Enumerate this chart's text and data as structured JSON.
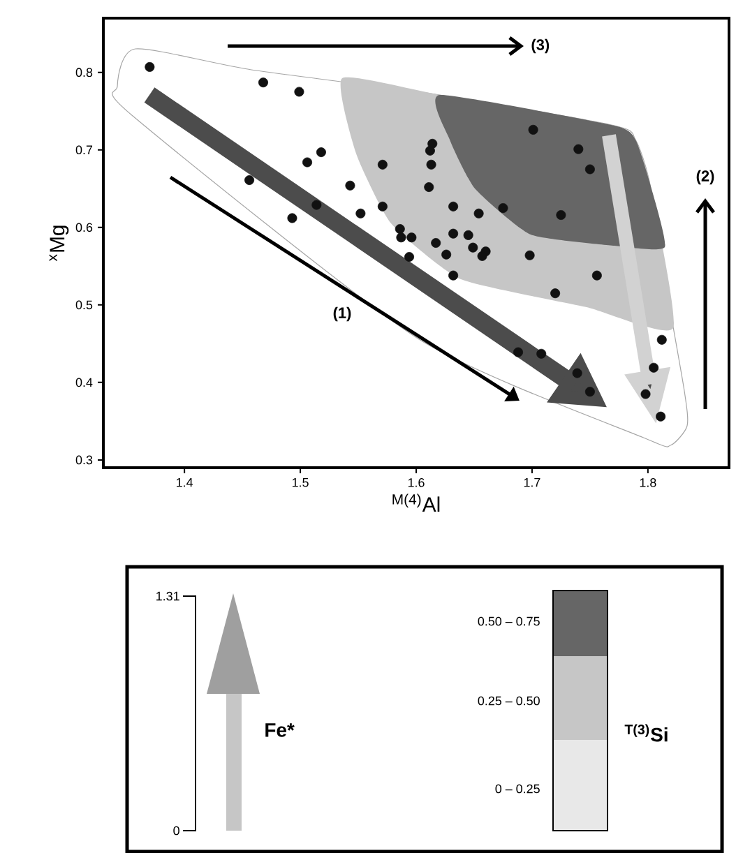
{
  "chart_data": {
    "type": "scatter",
    "xlabel": "$^{M(4)}$Al",
    "ylabel": "$^{x}$Mg",
    "x": [
      1.37,
      1.468,
      1.499,
      1.456,
      1.506,
      1.518,
      1.493,
      1.514,
      1.543,
      1.552,
      1.571,
      1.571,
      1.614,
      1.612,
      1.613,
      1.611,
      1.632,
      1.654,
      1.675,
      1.725,
      1.701,
      1.74,
      1.75,
      1.586,
      1.596,
      1.587,
      1.594,
      1.617,
      1.632,
      1.626,
      1.632,
      1.645,
      1.649,
      1.66,
      1.657,
      1.698,
      1.756,
      1.72,
      1.688,
      1.708,
      1.739,
      1.75,
      1.812,
      1.805,
      1.798,
      1.811
    ],
    "values": [
      0.807,
      0.787,
      0.775,
      0.661,
      0.684,
      0.697,
      0.612,
      0.629,
      0.654,
      0.618,
      0.681,
      0.627,
      0.708,
      0.699,
      0.681,
      0.652,
      0.627,
      0.618,
      0.625,
      0.616,
      0.726,
      0.701,
      0.675,
      0.598,
      0.587,
      0.587,
      0.562,
      0.58,
      0.592,
      0.565,
      0.538,
      0.59,
      0.574,
      0.569,
      0.563,
      0.564,
      0.538,
      0.515,
      0.439,
      0.437,
      0.412,
      0.388,
      0.455,
      0.419,
      0.385,
      0.356
    ],
    "color": "#111111",
    "marker": "circle",
    "xlim": [
      1.33,
      1.87
    ],
    "ylim": [
      0.29,
      0.87
    ],
    "xticks": [
      1.4,
      1.5,
      1.6,
      1.7,
      1.8
    ],
    "yticks": [
      0.3,
      0.4,
      0.5,
      0.6,
      0.7,
      0.8
    ],
    "annotations": [
      "(3)",
      "(2)",
      "(1)",
      "1.31",
      "0",
      "Fe*",
      "0.50 – 0.75",
      "0.25 – 0.50",
      "0 – 0.25",
      "$^{T(3)}$Si"
    ]
  }
}
